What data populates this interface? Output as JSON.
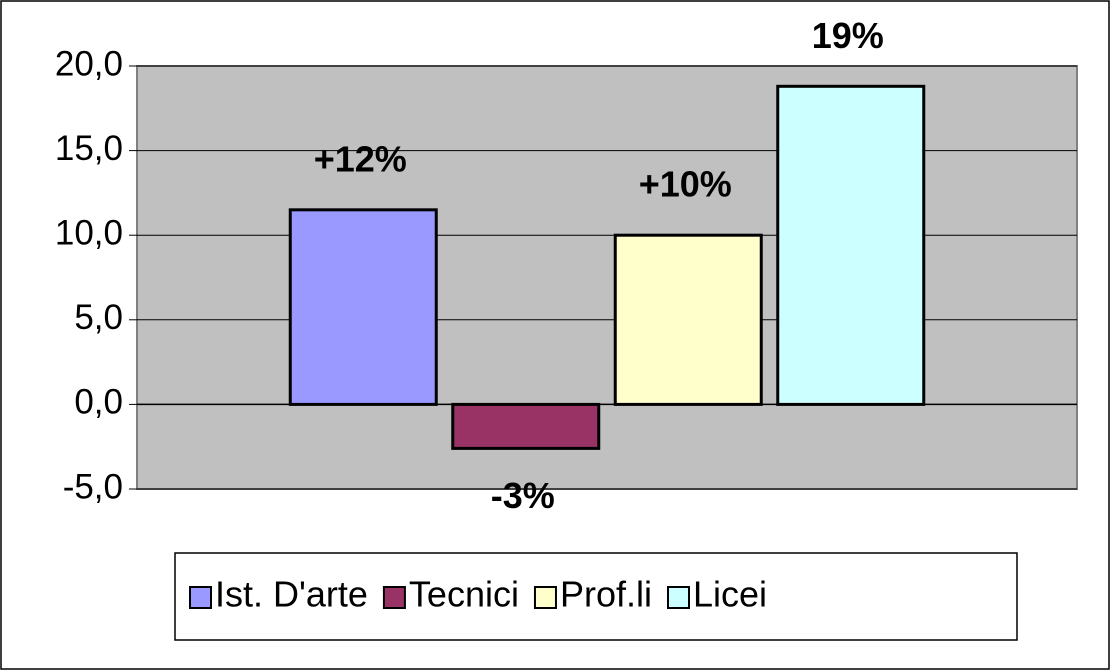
{
  "chart_data": {
    "type": "bar",
    "series": [
      {
        "name": "Ist. D'arte",
        "color": "#9999ff",
        "values": [
          11.5
        ],
        "value_labels": [
          "+12%"
        ]
      },
      {
        "name": "Tecnici",
        "color": "#993366",
        "values": [
          -2.6
        ],
        "value_labels": [
          "-3%"
        ]
      },
      {
        "name": "Prof.li",
        "color": "#ffffcc",
        "values": [
          10.0
        ],
        "value_labels": [
          "+10%"
        ]
      },
      {
        "name": "Licei",
        "color": "#ccffff",
        "values": [
          18.8
        ],
        "value_labels": [
          "19%"
        ]
      }
    ],
    "ylim": [
      -5,
      20
    ],
    "yticks": [
      {
        "value": -5,
        "label": "-5,0"
      },
      {
        "value": 0,
        "label": "0,0"
      },
      {
        "value": 5,
        "label": "5,0"
      },
      {
        "value": 10,
        "label": "10,0"
      },
      {
        "value": 15,
        "label": "15,0"
      },
      {
        "value": 20,
        "label": "20,0"
      }
    ],
    "grid": true,
    "legend": "bottom"
  }
}
